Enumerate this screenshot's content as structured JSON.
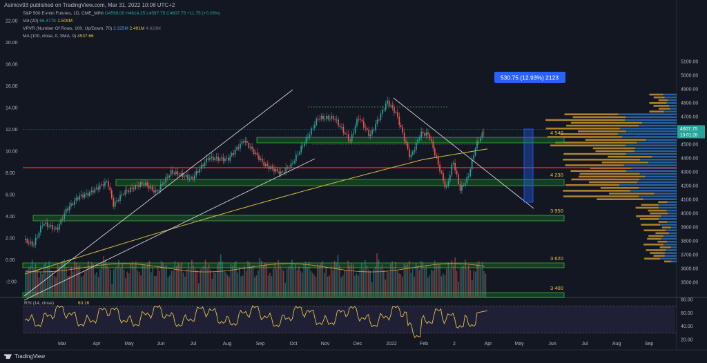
{
  "header": {
    "publisher": "Asimov93 published on TradingView.com, Mar 31, 2022 10:08 UTC+2"
  },
  "legend": {
    "line1": {
      "name": "S&P 500 E-mini Futures, 1D, CME_MINI",
      "ohlc": "O4599.00 H4614.25 L4597.75 C4607.75 +11.75 (+0.26%)"
    },
    "line2": {
      "name": "Vol (20)",
      "v1": "66.477K",
      "v2": "1.509M"
    },
    "line3": {
      "name": "VPVR (Number Of Rows, 100, Up/Down, 70)",
      "v1": "2.325M",
      "v2": "2.491M",
      "v3": "4.816M"
    },
    "line4": {
      "name": "MA (100, close, 0, SMA, 9)",
      "v1": "4537.66"
    }
  },
  "brand": {
    "name": "TradingView"
  },
  "colors": {
    "background": "#131722",
    "up": "#26a69a",
    "down": "#ef5350",
    "ma": "#c9b43a",
    "zone_fill": "#1c6b2a",
    "zone_border": "#3cb043",
    "key_line": "#ff1a1a",
    "vp_gold": "#c9952c",
    "vp_blue": "#2b6fb8",
    "rsi_line": "#e8c547",
    "measure": "#2962ff"
  },
  "chart_data": [
    {
      "type": "candlestick",
      "symbol": "S&P 500 E-mini Futures",
      "interval": "1D",
      "last_price": "4607.75",
      "countdown": "13:01:28",
      "y_axis_right": {
        "range": [
          3400,
          5100
        ],
        "ticks": [
          "5100.00",
          "5000.00",
          "4900.00",
          "4800.00",
          "4700.00",
          "4600.00",
          "4500.00",
          "4400.00",
          "4300.00",
          "4200.00",
          "4100.00",
          "4000.00",
          "3900.00",
          "3800.00",
          "3700.00",
          "3600.00",
          "3500.00"
        ]
      },
      "y_axis_left": {
        "ticks": [
          "22.00",
          "20.00",
          "18.00",
          "16.00",
          "14.00",
          "12.00",
          "10.00",
          "8.00",
          "6.00",
          "4.00",
          "2.00",
          "0.00",
          "-2.00"
        ]
      },
      "x_axis": {
        "ticks": [
          "Mar",
          "Apr",
          "May",
          "Jun",
          "Jul",
          "Aug",
          "Sep",
          "Oct",
          "Nov",
          "Dec",
          "2022",
          "Feb",
          "2",
          "Apr",
          "May",
          "Jun",
          "Jul",
          "Aug",
          "Sep"
        ]
      },
      "close_path": [
        {
          "date": "2021-02-25",
          "close": 3800
        },
        {
          "date": "2021-03-04",
          "close": 3770
        },
        {
          "date": "2021-03-12",
          "close": 3930
        },
        {
          "date": "2021-03-24",
          "close": 3880
        },
        {
          "date": "2021-04-01",
          "close": 4020
        },
        {
          "date": "2021-04-12",
          "close": 4120
        },
        {
          "date": "2021-04-20",
          "close": 4140
        },
        {
          "date": "2021-05-07",
          "close": 4230
        },
        {
          "date": "2021-05-12",
          "close": 4060
        },
        {
          "date": "2021-05-21",
          "close": 4150
        },
        {
          "date": "2021-06-07",
          "close": 4220
        },
        {
          "date": "2021-06-18",
          "close": 4150
        },
        {
          "date": "2021-07-01",
          "close": 4300
        },
        {
          "date": "2021-07-19",
          "close": 4250
        },
        {
          "date": "2021-08-02",
          "close": 4400
        },
        {
          "date": "2021-08-19",
          "close": 4390
        },
        {
          "date": "2021-09-02",
          "close": 4530
        },
        {
          "date": "2021-09-20",
          "close": 4350
        },
        {
          "date": "2021-10-04",
          "close": 4290
        },
        {
          "date": "2021-10-13",
          "close": 4350
        },
        {
          "date": "2021-10-27",
          "close": 4550
        },
        {
          "date": "2021-11-05",
          "close": 4690
        },
        {
          "date": "2021-11-19",
          "close": 4690
        },
        {
          "date": "2021-11-30",
          "close": 4560
        },
        {
          "date": "2021-12-03",
          "close": 4520
        },
        {
          "date": "2021-12-10",
          "close": 4700
        },
        {
          "date": "2021-12-20",
          "close": 4560
        },
        {
          "date": "2022-01-04",
          "close": 4810
        },
        {
          "date": "2022-01-12",
          "close": 4720
        },
        {
          "date": "2022-01-24",
          "close": 4400
        },
        {
          "date": "2022-02-02",
          "close": 4580
        },
        {
          "date": "2022-02-09",
          "close": 4570
        },
        {
          "date": "2022-02-24",
          "close": 4170
        },
        {
          "date": "2022-03-02",
          "close": 4380
        },
        {
          "date": "2022-03-08",
          "close": 4170
        },
        {
          "date": "2022-03-15",
          "close": 4260
        },
        {
          "date": "2022-03-22",
          "close": 4500
        },
        {
          "date": "2022-03-30",
          "close": 4607.75
        }
      ],
      "moving_average": {
        "name": "MA (100, close, 0, SMA, 9)",
        "last": 4537.66
      },
      "zones": [
        {
          "label": "4 540",
          "low": 4510,
          "high": 4550
        },
        {
          "label": "4 230",
          "low": 4200,
          "high": 4245
        },
        {
          "label": "3 950",
          "low": 3945,
          "high": 3985
        },
        {
          "label": "3 620",
          "low": 3605,
          "high": 3640
        },
        {
          "label": "3 400",
          "low": 3390,
          "high": 3425
        }
      ],
      "key_level": 4330,
      "measurement": {
        "label": "530.75 (12.93%) 2123",
        "from": 4080,
        "to": 4610
      },
      "volume_profile": {
        "rows": 100,
        "poc_region": [
          4450,
          4680
        ]
      }
    },
    {
      "type": "line",
      "name": "RSI (14, close)",
      "last_value": "63.16",
      "y_axis": {
        "ticks": [
          "80.00",
          "60.00",
          "40.00",
          "20.00"
        ]
      },
      "band": [
        30,
        70
      ]
    }
  ]
}
